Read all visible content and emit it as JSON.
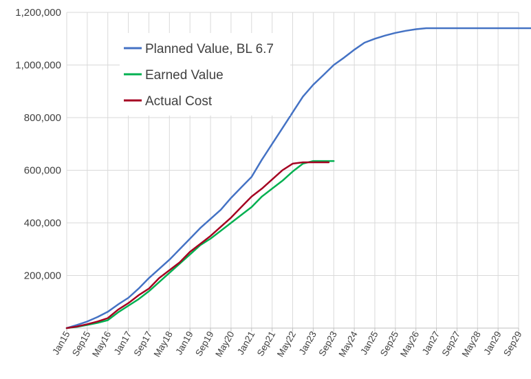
{
  "chart_data": {
    "type": "line",
    "title": "",
    "xlabel": "",
    "ylabel": "",
    "ylim": [
      0,
      1200000
    ],
    "yticks": [
      {
        "value": 200000,
        "label": "200,000"
      },
      {
        "value": 400000,
        "label": "400,000"
      },
      {
        "value": 600000,
        "label": "600,000"
      },
      {
        "value": 800000,
        "label": "800,000"
      },
      {
        "value": 1000000,
        "label": "1,000,000"
      },
      {
        "value": 1200000,
        "label": "1,200,000"
      }
    ],
    "xticks": [
      "Jan15",
      "Sep15",
      "May16",
      "Jan17",
      "Sep17",
      "May18",
      "Jan19",
      "Sep19",
      "May20",
      "Jan21",
      "Sep21",
      "May22",
      "Jan23",
      "Sep23",
      "May24",
      "Jan25",
      "Sep25",
      "May26",
      "Jan27",
      "Sep27",
      "May28",
      "Jan29",
      "Sep29"
    ],
    "x_unit": "month index from Jan15 (tick every 8 months)",
    "grid": true,
    "legend_placement": "top-left inside plot",
    "series": [
      {
        "name": "Planned Value, BL 6.7",
        "color": "#4472C4",
        "x": [
          0,
          4,
          8,
          12,
          16,
          20,
          24,
          28,
          32,
          36,
          40,
          44,
          48,
          52,
          56,
          60,
          64,
          68,
          72,
          76,
          80,
          84,
          88,
          92,
          96,
          100,
          104,
          108,
          112,
          116,
          120,
          124,
          128,
          132,
          136,
          140,
          144,
          148,
          152,
          156,
          160,
          164,
          168,
          172,
          176,
          180,
          182
        ],
        "y": [
          0,
          12000,
          25000,
          42000,
          62000,
          90000,
          115000,
          150000,
          190000,
          225000,
          260000,
          300000,
          340000,
          380000,
          415000,
          450000,
          495000,
          535000,
          575000,
          640000,
          700000,
          760000,
          820000,
          880000,
          925000,
          962000,
          1000000,
          1028000,
          1058000,
          1085000,
          1100000,
          1112000,
          1122000,
          1130000,
          1136000,
          1140000,
          1140000,
          1140000,
          1140000,
          1140000,
          1140000,
          1140000,
          1140000,
          1140000,
          1140000,
          1140000,
          1140000
        ]
      },
      {
        "name": "Earned Value",
        "color": "#00B050",
        "x": [
          0,
          4,
          8,
          12,
          16,
          20,
          24,
          28,
          32,
          36,
          40,
          44,
          48,
          52,
          56,
          60,
          64,
          68,
          72,
          76,
          80,
          84,
          88,
          92,
          96,
          100,
          102,
          104
        ],
        "y": [
          0,
          5000,
          12000,
          20000,
          30000,
          60000,
          85000,
          110000,
          140000,
          175000,
          210000,
          245000,
          280000,
          315000,
          340000,
          370000,
          400000,
          430000,
          460000,
          500000,
          530000,
          560000,
          595000,
          625000,
          635000,
          635000,
          635000,
          635000
        ]
      },
      {
        "name": "Actual Cost",
        "color": "#A50021",
        "x": [
          0,
          4,
          8,
          12,
          16,
          20,
          24,
          28,
          32,
          36,
          40,
          44,
          48,
          52,
          56,
          60,
          64,
          68,
          72,
          76,
          80,
          84,
          88,
          92,
          96,
          100,
          102
        ],
        "y": [
          0,
          6000,
          15000,
          25000,
          38000,
          70000,
          95000,
          125000,
          150000,
          190000,
          220000,
          250000,
          290000,
          320000,
          350000,
          385000,
          420000,
          460000,
          500000,
          530000,
          565000,
          600000,
          625000,
          630000,
          630000,
          630000,
          630000
        ]
      }
    ]
  }
}
